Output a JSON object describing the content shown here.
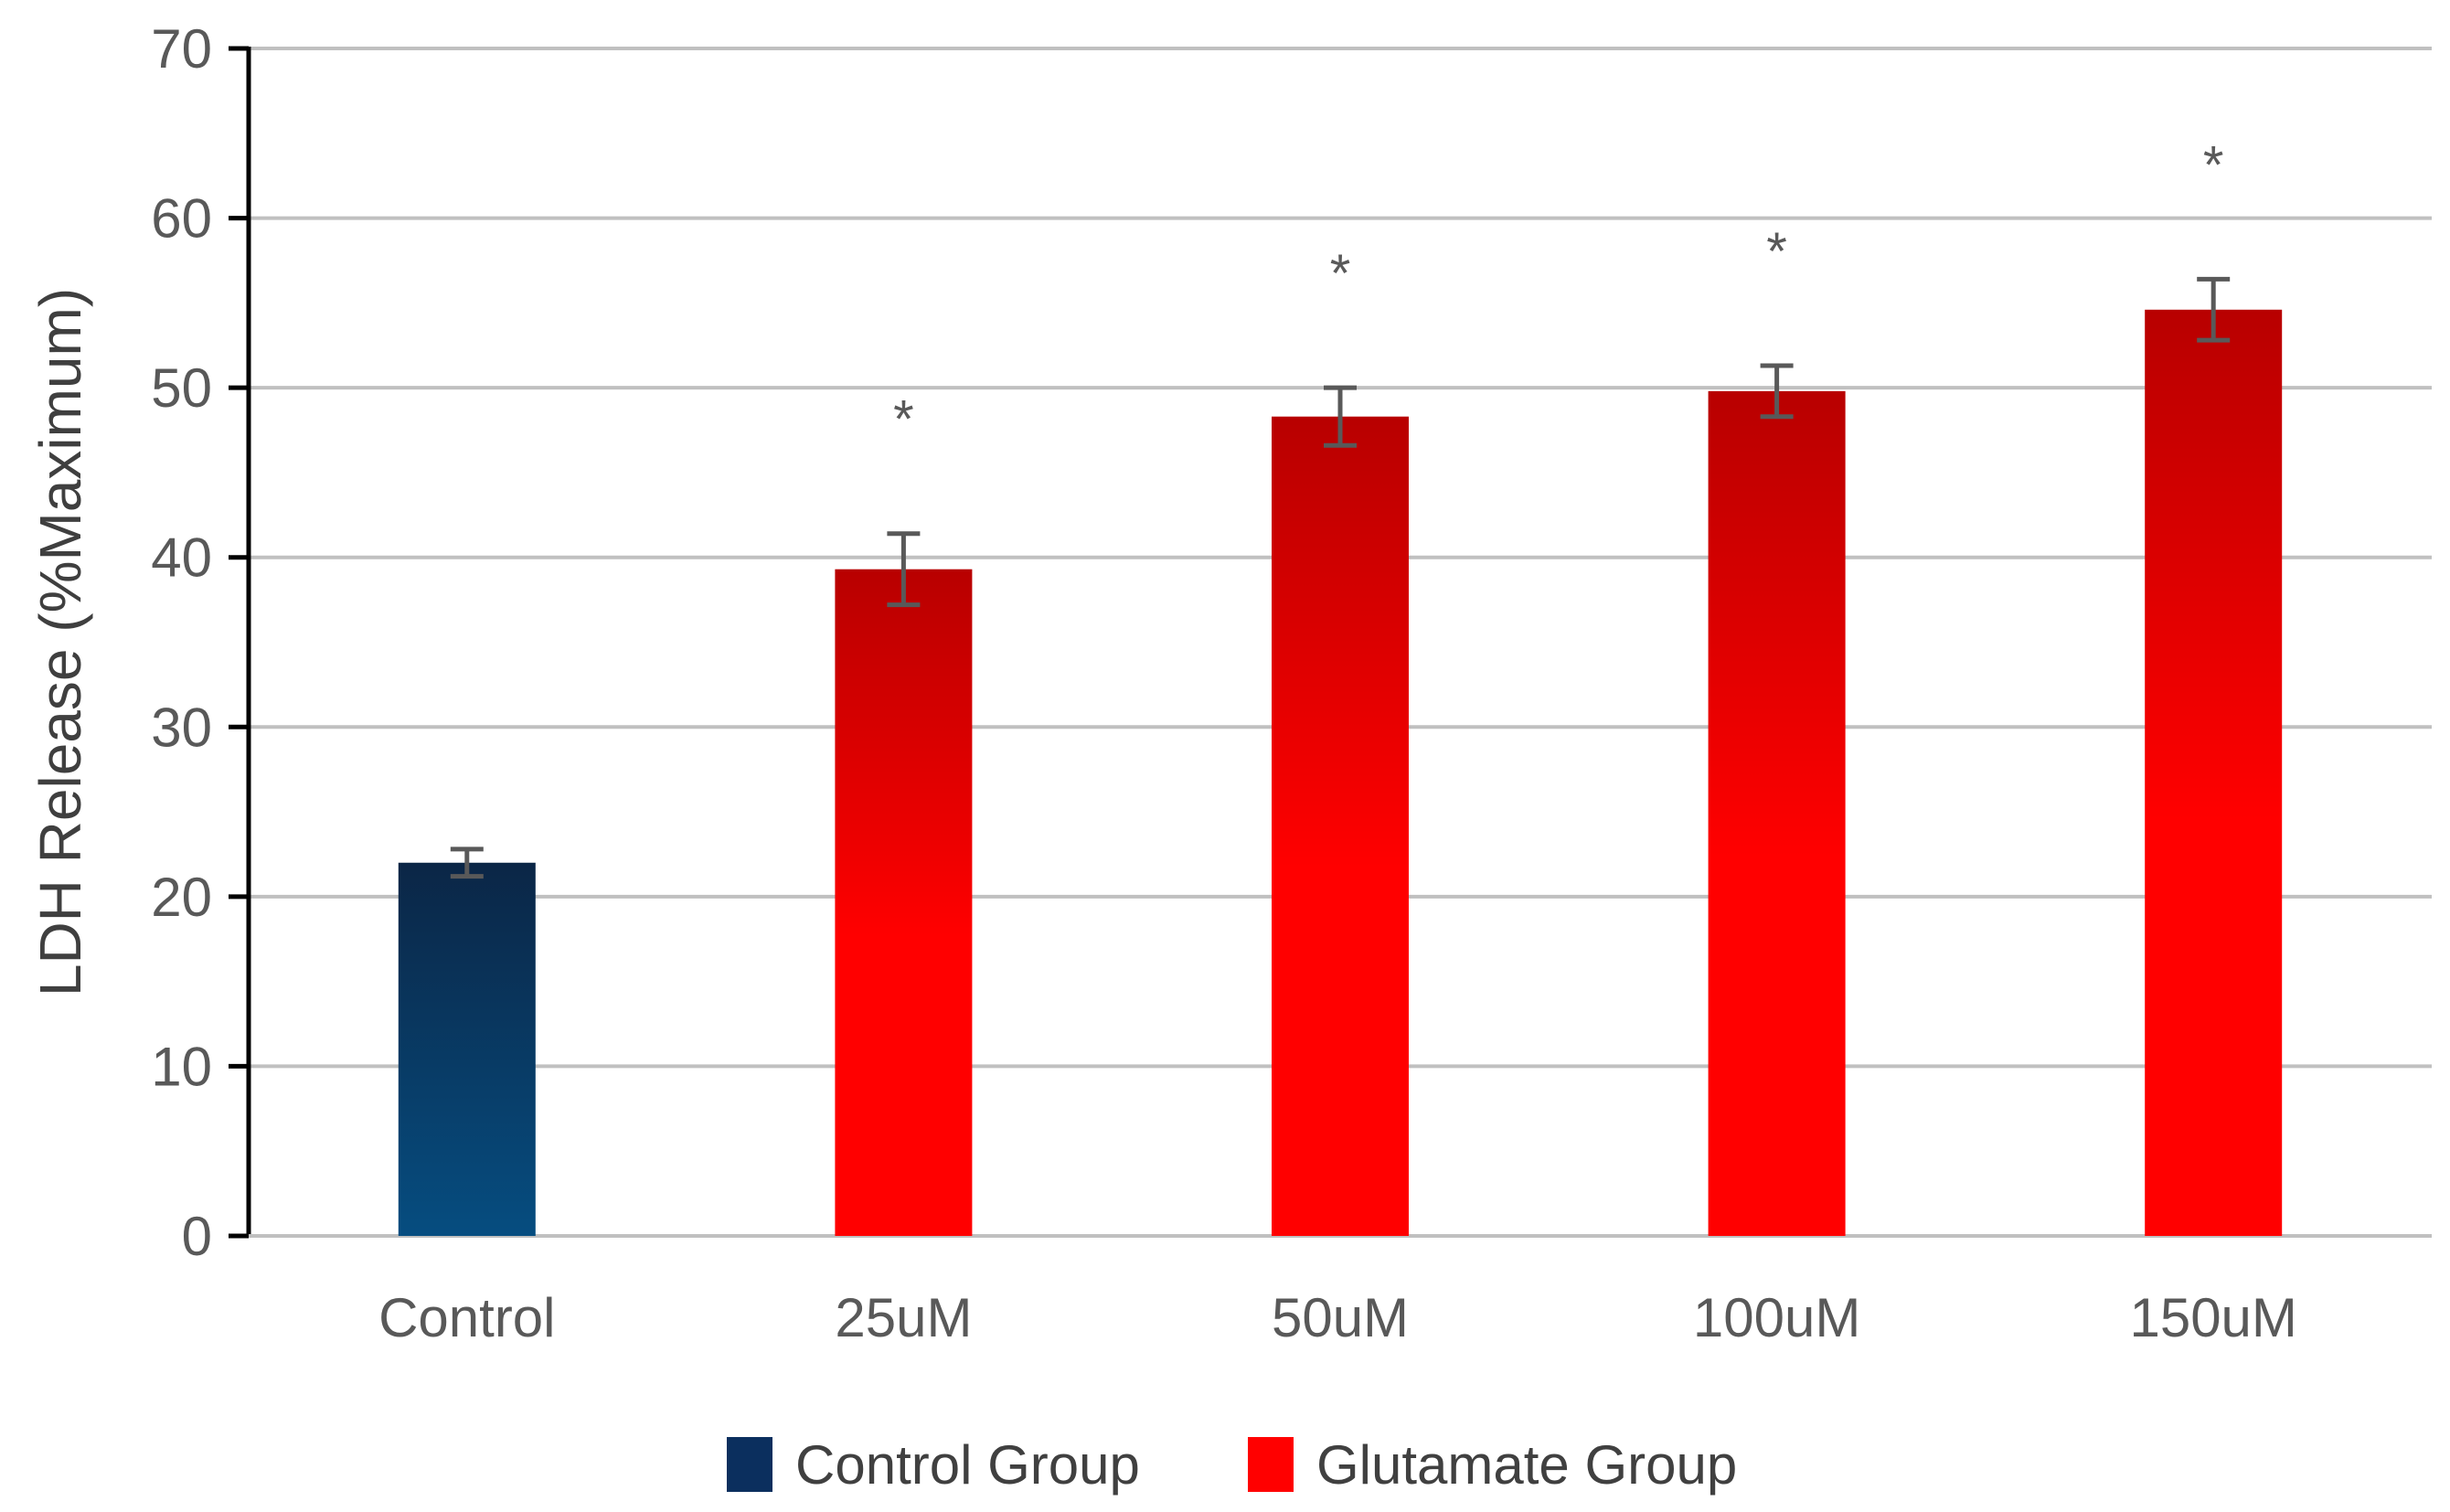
{
  "chart_data": {
    "type": "bar",
    "title": "",
    "xlabel": "",
    "ylabel": "LDH Release (%Maximum)",
    "ylim": [
      0,
      70
    ],
    "yticks": [
      0,
      10,
      20,
      30,
      40,
      50,
      60,
      70
    ],
    "grid": true,
    "categories": [
      "Control",
      "25uM",
      "50uM",
      "100uM",
      "150uM"
    ],
    "values": [
      22,
      39.3,
      48.3,
      49.8,
      54.6
    ],
    "errors": [
      0.8,
      2.1,
      1.7,
      1.5,
      1.8
    ],
    "groups": [
      "Control Group",
      "Glutamate Group",
      "Glutamate Group",
      "Glutamate Group",
      "Glutamate Group"
    ],
    "significance": [
      "",
      "*",
      "*",
      "*",
      "*"
    ],
    "legend": {
      "position": "bottom",
      "entries": [
        {
          "label": "Control Group",
          "color": "#0b2f5e"
        },
        {
          "label": "Glutamate Group",
          "color": "#ff0000"
        }
      ]
    },
    "colors": {
      "control_top": "#0b2646",
      "control_bottom": "#064d80",
      "glutamate_top": "#b80000",
      "glutamate_bottom": "#ff0000",
      "error_bar": "#595959",
      "grid": "#c0c0c0",
      "axis": "#000000"
    }
  }
}
